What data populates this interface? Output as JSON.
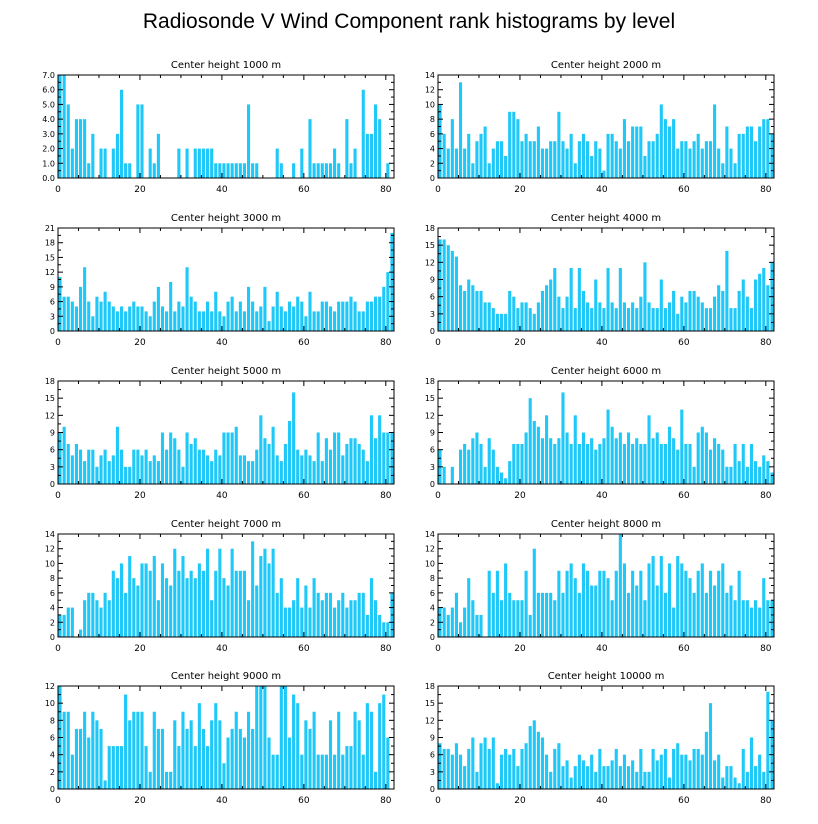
{
  "figure": {
    "title": "Radiosonde V Wind Component rank histograms by level",
    "bar_color": "#1ec8f8",
    "axis_color": "#000000"
  },
  "chart_data": [
    {
      "type": "bar",
      "title": "Center height 1000 m",
      "xlim": [
        0,
        82
      ],
      "xticks": [
        0,
        20,
        40,
        60,
        80
      ],
      "ylim": [
        0,
        7
      ],
      "yticks": [
        "0.0",
        "1.0",
        "2.0",
        "3.0",
        "4.0",
        "5.0",
        "6.0",
        "7.0"
      ],
      "values": [
        7,
        7,
        5,
        2,
        4,
        4,
        4,
        1,
        3,
        0,
        2,
        2,
        0,
        2,
        3,
        6,
        1,
        1,
        0,
        5,
        5,
        0,
        2,
        1,
        3,
        0,
        0,
        0,
        0,
        2,
        0,
        2,
        0,
        2,
        2,
        2,
        2,
        2,
        1,
        1,
        1,
        1,
        1,
        1,
        1,
        1,
        5,
        1,
        1,
        0,
        0,
        0,
        0,
        2,
        1,
        0,
        0,
        1,
        0,
        2,
        0,
        4,
        1,
        1,
        1,
        1,
        1,
        2,
        1,
        0,
        4,
        1,
        2,
        0,
        6,
        3,
        3,
        5,
        4,
        0,
        1,
        0
      ]
    },
    {
      "type": "bar",
      "title": "Center height 2000 m",
      "xlim": [
        0,
        82
      ],
      "xticks": [
        0,
        20,
        40,
        60,
        80
      ],
      "ylim": [
        0,
        14
      ],
      "yticks": [
        "0",
        "2",
        "4",
        "6",
        "8",
        "10",
        "12",
        "14"
      ],
      "values": [
        10,
        6,
        4,
        8,
        4,
        13,
        4,
        6,
        2,
        5,
        6,
        7,
        2,
        4,
        5,
        5,
        3,
        9,
        9,
        8,
        5,
        6,
        5,
        5,
        7,
        4,
        4,
        5,
        5,
        9,
        5,
        4,
        6,
        2,
        5,
        6,
        5,
        3,
        5,
        4,
        1,
        6,
        6,
        5,
        4,
        8,
        5,
        7,
        7,
        7,
        3,
        5,
        5,
        6,
        10,
        8,
        7,
        8,
        4,
        5,
        5,
        4,
        5,
        6,
        4,
        5,
        5,
        10,
        4,
        2,
        7,
        4,
        2,
        6,
        6,
        7,
        7,
        5,
        7,
        8,
        8,
        6
      ]
    },
    {
      "type": "bar",
      "title": "Center height 3000 m",
      "xlim": [
        0,
        82
      ],
      "xticks": [
        0,
        20,
        40,
        60,
        80
      ],
      "ylim": [
        0,
        21
      ],
      "yticks": [
        "0",
        "3",
        "6",
        "9",
        "12",
        "15",
        "18",
        "21"
      ],
      "values": [
        11,
        7,
        7,
        6,
        5,
        9,
        13,
        6,
        3,
        7,
        6,
        8,
        6,
        5,
        4,
        5,
        4,
        5,
        6,
        5,
        5,
        4,
        3,
        6,
        9,
        5,
        4,
        10,
        4,
        6,
        5,
        13,
        7,
        6,
        4,
        4,
        6,
        4,
        8,
        4,
        3,
        6,
        7,
        4,
        6,
        4,
        9,
        6,
        4,
        5,
        9,
        2,
        5,
        8,
        5,
        4,
        6,
        5,
        7,
        6,
        3,
        8,
        4,
        4,
        6,
        6,
        5,
        4,
        6,
        6,
        6,
        7,
        6,
        4,
        4,
        6,
        6,
        7,
        7,
        9,
        12,
        20
      ]
    },
    {
      "type": "bar",
      "title": "Center height 4000 m",
      "xlim": [
        0,
        82
      ],
      "xticks": [
        0,
        20,
        40,
        60,
        80
      ],
      "ylim": [
        0,
        18
      ],
      "yticks": [
        "0",
        "3",
        "6",
        "9",
        "12",
        "15",
        "18"
      ],
      "values": [
        16,
        16,
        15,
        14,
        13,
        8,
        7,
        9,
        8,
        7,
        7,
        5,
        5,
        4,
        3,
        3,
        3,
        7,
        6,
        4,
        5,
        5,
        4,
        3,
        5,
        7,
        8,
        9,
        11,
        6,
        4,
        6,
        11,
        4,
        11,
        7,
        5,
        4,
        9,
        5,
        4,
        11,
        5,
        4,
        11,
        5,
        4,
        5,
        4,
        6,
        12,
        5,
        4,
        4,
        9,
        4,
        5,
        7,
        3,
        6,
        5,
        7,
        7,
        6,
        5,
        4,
        4,
        6,
        8,
        7,
        14,
        4,
        4,
        7,
        9,
        6,
        4,
        9,
        10,
        11,
        8,
        12
      ]
    },
    {
      "type": "bar",
      "title": "Center height 5000 m",
      "xlim": [
        0,
        82
      ],
      "xticks": [
        0,
        20,
        40,
        60,
        80
      ],
      "ylim": [
        0,
        18
      ],
      "yticks": [
        "0",
        "3",
        "6",
        "9",
        "12",
        "15",
        "18"
      ],
      "values": [
        9,
        10,
        7,
        5,
        7,
        6,
        4,
        6,
        6,
        3,
        5,
        6,
        4,
        5,
        10,
        6,
        3,
        3,
        6,
        6,
        5,
        6,
        4,
        5,
        4,
        9,
        6,
        9,
        8,
        6,
        3,
        9,
        7,
        8,
        6,
        6,
        5,
        4,
        6,
        5,
        9,
        9,
        9,
        10,
        5,
        5,
        4,
        4,
        6,
        12,
        8,
        7,
        10,
        5,
        4,
        7,
        11,
        16,
        6,
        5,
        6,
        5,
        4,
        9,
        4,
        8,
        6,
        9,
        9,
        5,
        7,
        8,
        8,
        7,
        6,
        4,
        12,
        8,
        12,
        9,
        9,
        9
      ]
    },
    {
      "type": "bar",
      "title": "Center height 6000 m",
      "xlim": [
        0,
        82
      ],
      "xticks": [
        0,
        20,
        40,
        60,
        80
      ],
      "ylim": [
        0,
        18
      ],
      "yticks": [
        "0",
        "3",
        "6",
        "9",
        "12",
        "15",
        "18"
      ],
      "values": [
        6,
        3,
        0,
        3,
        0,
        6,
        7,
        6,
        8,
        9,
        7,
        3,
        8,
        6,
        3,
        2,
        1,
        4,
        7,
        7,
        7,
        9,
        15,
        11,
        10,
        8,
        12,
        8,
        7,
        8,
        16,
        9,
        7,
        12,
        7,
        9,
        7,
        8,
        6,
        7,
        8,
        13,
        10,
        8,
        9,
        7,
        9,
        7,
        8,
        7,
        7,
        12,
        8,
        9,
        7,
        7,
        10,
        8,
        6,
        13,
        7,
        7,
        3,
        9,
        10,
        9,
        6,
        8,
        7,
        6,
        3,
        3,
        7,
        4,
        7,
        3,
        7,
        4,
        3,
        5,
        4,
        2
      ]
    },
    {
      "type": "bar",
      "title": "Center height 7000 m",
      "xlim": [
        0,
        82
      ],
      "xticks": [
        0,
        20,
        40,
        60,
        80
      ],
      "ylim": [
        0,
        14
      ],
      "yticks": [
        "0",
        "2",
        "4",
        "6",
        "8",
        "10",
        "12",
        "14"
      ],
      "values": [
        3,
        3,
        4,
        4,
        0,
        1,
        5,
        6,
        6,
        5,
        4,
        6,
        5,
        9,
        8,
        10,
        6,
        11,
        8,
        7,
        10,
        10,
        9,
        11,
        5,
        10,
        8,
        7,
        12,
        9,
        11,
        8,
        9,
        8,
        10,
        9,
        12,
        5,
        9,
        12,
        8,
        7,
        12,
        9,
        9,
        9,
        5,
        13,
        7,
        11,
        12,
        10,
        12,
        6,
        8,
        4,
        4,
        5,
        8,
        4,
        7,
        4,
        8,
        6,
        5,
        6,
        6,
        4,
        5,
        6,
        4,
        5,
        5,
        6,
        6,
        3,
        8,
        5,
        3,
        2,
        2,
        6
      ]
    },
    {
      "type": "bar",
      "title": "Center height 8000 m",
      "xlim": [
        0,
        82
      ],
      "xticks": [
        0,
        20,
        40,
        60,
        80
      ],
      "ylim": [
        0,
        14
      ],
      "yticks": [
        "0",
        "2",
        "4",
        "6",
        "8",
        "10",
        "12",
        "14"
      ],
      "values": [
        4,
        4,
        3,
        4,
        6,
        2,
        4,
        8,
        5,
        3,
        3,
        0,
        9,
        6,
        9,
        5,
        10,
        6,
        5,
        5,
        5,
        9,
        3,
        12,
        6,
        6,
        6,
        6,
        5,
        9,
        6,
        9,
        10,
        8,
        6,
        10,
        9,
        7,
        7,
        9,
        9,
        8,
        5,
        9,
        14,
        10,
        6,
        9,
        7,
        9,
        5,
        10,
        11,
        7,
        11,
        6,
        10,
        4,
        11,
        10,
        9,
        8,
        6,
        9,
        10,
        6,
        9,
        7,
        9,
        10,
        6,
        7,
        5,
        9,
        5,
        5,
        4,
        5,
        4,
        8,
        5,
        5
      ]
    },
    {
      "type": "bar",
      "title": "Center height 9000 m",
      "xlim": [
        0,
        82
      ],
      "xticks": [
        0,
        20,
        40,
        60,
        80
      ],
      "ylim": [
        0,
        12
      ],
      "yticks": [
        "0",
        "2",
        "4",
        "6",
        "8",
        "10",
        "12"
      ],
      "values": [
        12,
        9,
        9,
        4,
        7,
        7,
        9,
        6,
        9,
        8,
        7,
        1,
        5,
        5,
        5,
        5,
        11,
        8,
        9,
        9,
        9,
        5,
        2,
        9,
        7,
        7,
        2,
        2,
        8,
        5,
        9,
        7,
        8,
        5,
        10,
        7,
        5,
        8,
        10,
        8,
        3,
        6,
        7,
        9,
        7,
        6,
        9,
        7,
        12,
        12,
        12,
        6,
        4,
        4,
        12,
        12,
        6,
        11,
        10,
        4,
        8,
        7,
        9,
        4,
        4,
        4,
        8,
        4,
        9,
        4,
        5,
        5,
        9,
        8,
        4,
        10,
        9,
        2,
        10,
        11,
        6,
        0
      ]
    },
    {
      "type": "bar",
      "title": "Center height 10000 m",
      "xlim": [
        0,
        82
      ],
      "xticks": [
        0,
        20,
        40,
        60,
        80
      ],
      "ylim": [
        0,
        18
      ],
      "yticks": [
        "0",
        "3",
        "6",
        "9",
        "12",
        "15",
        "18"
      ],
      "values": [
        8,
        7,
        7,
        6,
        8,
        6,
        4,
        7,
        9,
        3,
        8,
        9,
        7,
        9,
        1,
        6,
        7,
        6,
        7,
        4,
        7,
        8,
        11,
        12,
        10,
        9,
        6,
        3,
        7,
        8,
        4,
        5,
        2,
        4,
        6,
        5,
        4,
        6,
        3,
        7,
        4,
        4,
        5,
        7,
        4,
        6,
        4,
        5,
        3,
        7,
        3,
        3,
        7,
        5,
        6,
        7,
        2,
        7,
        8,
        6,
        6,
        5,
        7,
        7,
        6,
        10,
        15,
        5,
        6,
        2,
        4,
        4,
        2,
        1,
        7,
        3,
        9,
        4,
        6,
        3,
        17,
        12
      ]
    }
  ]
}
